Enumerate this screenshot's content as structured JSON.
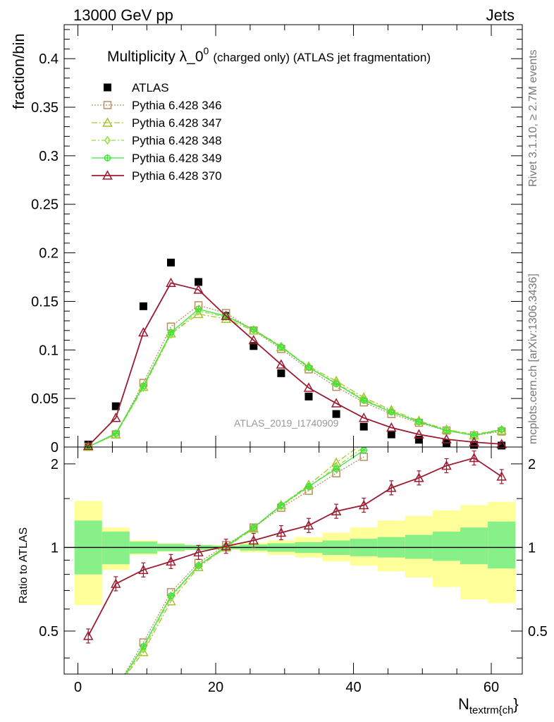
{
  "header": {
    "left": "13000 GeV pp",
    "right": "Jets"
  },
  "side": {
    "rivet": "Rivet 3.1.10, ≥ 2.7M events",
    "mcplots": "mcplots.cern.ch [arXiv:1306.3436]"
  },
  "watermark": "ATLAS_2019_I1740909",
  "colors": {
    "data": "#000000",
    "s346": "#b8905a",
    "s347": "#a6c42c",
    "s348": "#8ee030",
    "s349": "#3ee43e",
    "s370": "#9b1b30",
    "band_inner": "#88f088",
    "band_outer": "#ffff99"
  },
  "chart_data": [
    {
      "type": "scatter",
      "title": "Multiplicity λ_0^0 (charged only) (ATLAS jet fragmentation)",
      "title_main": "Multiplicity λ_0",
      "title_sup": "0",
      "title_rest": "(charged only) (ATLAS jet fragmentation)",
      "xlabel": "N_textrm{ch}",
      "xlabel_main": "N",
      "xlabel_sub": "textrm{ch",
      "xlabel_tail": "}",
      "ylabel": "fraction/bin",
      "xlim": [
        -2,
        64.5
      ],
      "ylim": [
        0,
        0.435
      ],
      "xticks": [
        0,
        20,
        40,
        60
      ],
      "yticks": [
        0,
        0.05,
        0.1,
        0.15,
        0.2,
        0.25,
        0.3,
        0.35,
        0.4
      ],
      "ytick_labels": [
        "0",
        "0.05",
        "0.1",
        "0.15",
        "0.2",
        "0.25",
        "0.3",
        "0.35",
        "0.4"
      ],
      "legend_position": "top-left",
      "x": [
        1.5,
        5.5,
        9.5,
        13.5,
        17.5,
        21.5,
        25.5,
        29.5,
        33.5,
        37.5,
        41.5,
        45.5,
        49.5,
        53.5,
        57.5,
        61.5
      ],
      "series": [
        {
          "name": "ATLAS",
          "marker": "square",
          "values": [
            0.0025,
            0.042,
            0.145,
            0.19,
            0.17,
            0.135,
            0.104,
            0.076,
            0.052,
            0.034,
            0.021,
            0.013,
            0.0075,
            0.004,
            0.0022,
            0.0015
          ]
        },
        {
          "name": "Pythia 6.428 346",
          "marker": "open-square",
          "dash": "2,2",
          "values": [
            0.0002,
            0.013,
            0.066,
            0.124,
            0.146,
            0.138,
            0.12,
            0.101,
            0.08,
            0.062,
            0.046,
            0.034,
            0.025,
            0.017,
            0.012,
            0.016
          ]
        },
        {
          "name": "Pythia 6.428 347",
          "marker": "open-triangle",
          "dash": "8,3,2,3",
          "values": [
            0.0002,
            0.013,
            0.062,
            0.117,
            0.137,
            0.132,
            0.12,
            0.103,
            0.083,
            0.068,
            0.051,
            0.038,
            0.027,
            0.018,
            0.012,
            0.017
          ]
        },
        {
          "name": "Pythia 6.428 348",
          "marker": "open-diamond",
          "dash": "6,3,2,3",
          "values": [
            0.0002,
            0.013,
            0.061,
            0.116,
            0.14,
            0.134,
            0.121,
            0.104,
            0.082,
            0.066,
            0.049,
            0.037,
            0.026,
            0.018,
            0.013,
            0.018
          ]
        },
        {
          "name": "Pythia 6.428 349",
          "marker": "open-cross-circle",
          "dash": "",
          "values": [
            0.0002,
            0.014,
            0.063,
            0.118,
            0.142,
            0.135,
            0.121,
            0.103,
            0.082,
            0.065,
            0.048,
            0.036,
            0.026,
            0.017,
            0.012,
            0.018
          ]
        },
        {
          "name": "Pythia 6.428 370",
          "marker": "open-triangle",
          "dash": "",
          "values": [
            0.0012,
            0.03,
            0.118,
            0.169,
            0.162,
            0.135,
            0.11,
            0.085,
            0.061,
            0.045,
            0.03,
            0.02,
            0.013,
            0.008,
            0.005,
            0.003
          ]
        }
      ]
    },
    {
      "type": "line",
      "ylabel": "Ratio to ATLAS",
      "xlim": [
        -2,
        64.5
      ],
      "ylim": [
        0.35,
        2.3
      ],
      "log_y": true,
      "yticks": [
        0.5,
        1,
        2
      ],
      "ytick_labels": [
        "0.5",
        "1",
        "2"
      ],
      "xticks": [
        0,
        20,
        40,
        60
      ],
      "bin_edges": [
        -0.5,
        3.5,
        7.5,
        11.5,
        15.5,
        19.5,
        23.5,
        27.5,
        31.5,
        35.5,
        39.5,
        43.5,
        47.5,
        51.5,
        55.5,
        59.5,
        63.5
      ],
      "band_inner_lo": [
        0.8,
        0.87,
        0.95,
        0.97,
        0.98,
        0.985,
        0.975,
        0.965,
        0.955,
        0.94,
        0.93,
        0.92,
        0.91,
        0.895,
        0.87,
        0.84
      ],
      "band_inner_hi": [
        1.25,
        1.14,
        1.05,
        1.03,
        1.02,
        1.015,
        1.025,
        1.035,
        1.045,
        1.06,
        1.075,
        1.09,
        1.11,
        1.14,
        1.18,
        1.24
      ],
      "band_outer_lo": [
        0.62,
        0.83,
        0.94,
        0.965,
        0.978,
        0.98,
        0.96,
        0.94,
        0.92,
        0.89,
        0.86,
        0.82,
        0.78,
        0.72,
        0.65,
        0.63
      ],
      "band_outer_hi": [
        1.47,
        1.18,
        1.06,
        1.035,
        1.022,
        1.02,
        1.04,
        1.06,
        1.09,
        1.13,
        1.18,
        1.25,
        1.3,
        1.36,
        1.42,
        1.46
      ],
      "x": [
        1.5,
        5.5,
        9.5,
        13.5,
        17.5,
        21.5,
        25.5,
        29.5,
        33.5,
        37.5,
        41.5,
        45.5,
        49.5,
        53.5,
        57.5,
        61.5
      ],
      "series": [
        {
          "name": "Pythia 6.428 346",
          "values": [
            null,
            0.31,
            0.455,
            0.69,
            0.88,
            1.02,
            1.18,
            1.39,
            1.6,
            1.85,
            2.12,
            null,
            null,
            null,
            null,
            null
          ]
        },
        {
          "name": "Pythia 6.428 347",
          "values": [
            null,
            0.31,
            0.42,
            0.64,
            0.85,
            1.0,
            1.17,
            1.42,
            1.68,
            2.02,
            2.38,
            null,
            null,
            null,
            null,
            null
          ]
        },
        {
          "name": "Pythia 6.428 348",
          "values": [
            null,
            0.31,
            0.43,
            0.66,
            0.86,
            1.0,
            1.18,
            1.41,
            1.65,
            1.95,
            2.3,
            null,
            null,
            null,
            null,
            null
          ]
        },
        {
          "name": "Pythia 6.428 349",
          "values": [
            null,
            0.31,
            0.44,
            0.67,
            0.86,
            1.01,
            1.18,
            1.42,
            1.66,
            1.92,
            2.24,
            null,
            null,
            null,
            null,
            null
          ]
        },
        {
          "name": "Pythia 6.428 370",
          "values": [
            0.48,
            0.74,
            0.83,
            0.89,
            0.96,
            1.01,
            1.06,
            1.13,
            1.2,
            1.35,
            1.42,
            1.64,
            1.78,
            1.97,
            2.1,
            1.8
          ]
        }
      ]
    }
  ]
}
